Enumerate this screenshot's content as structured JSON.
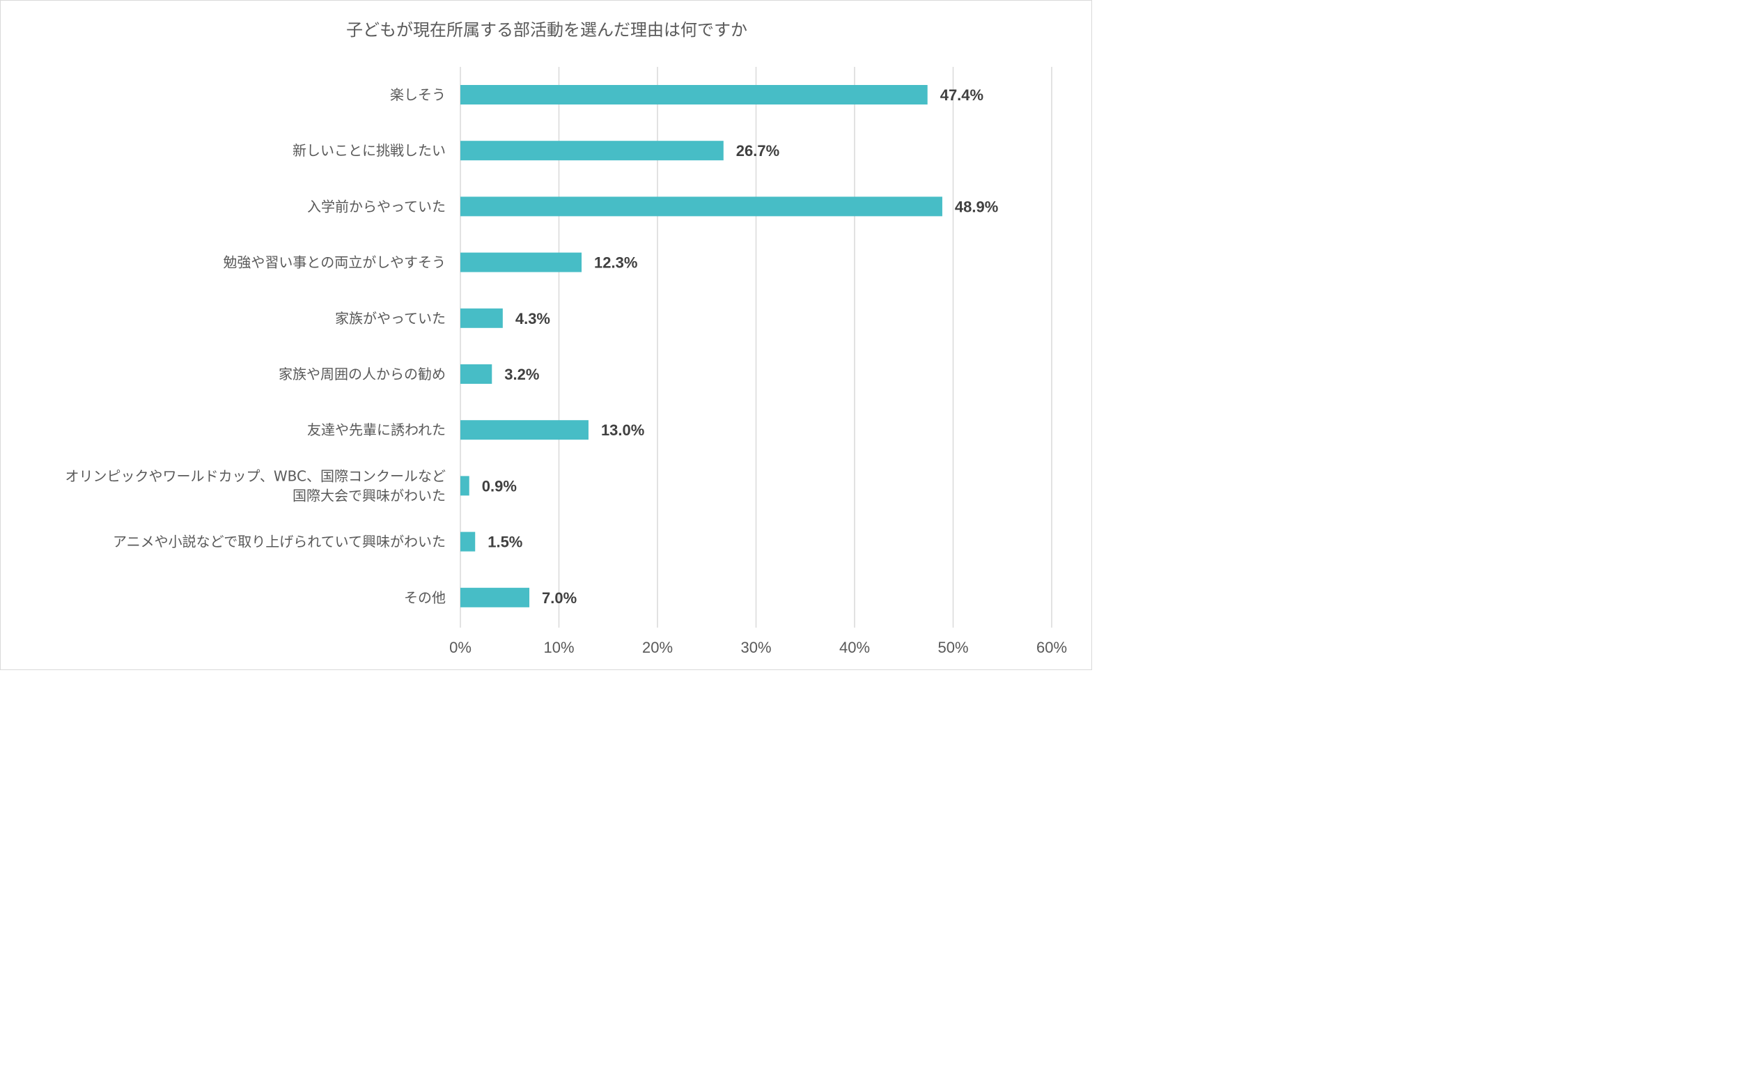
{
  "chart_data": {
    "type": "bar",
    "orientation": "horizontal",
    "title": "子どもが現在所属する部活動を選んだ理由は何ですか",
    "categories": [
      "楽しそう",
      "新しいことに挑戦したい",
      "入学前からやっていた",
      "勉強や習い事との両立がしやすそう",
      "家族がやっていた",
      "家族や周囲の人からの勧め",
      "友達や先輩に誘われた",
      "オリンピックやワールドカップ、WBC、国際コンクールなど\n国際大会で興味がわいた",
      "アニメや小説などで取り上げられていて興味がわいた",
      "その他"
    ],
    "values": [
      47.4,
      26.7,
      48.9,
      12.3,
      4.3,
      3.2,
      13.0,
      0.9,
      1.5,
      7.0
    ],
    "value_labels": [
      "47.4%",
      "26.7%",
      "48.9%",
      "12.3%",
      "4.3%",
      "3.2%",
      "13.0%",
      "0.9%",
      "1.5%",
      "7.0%"
    ],
    "xlim": [
      0,
      60
    ],
    "xticks": [
      0,
      10,
      20,
      30,
      40,
      50,
      60
    ],
    "xtick_labels": [
      "0%",
      "10%",
      "20%",
      "30%",
      "40%",
      "50%",
      "60%"
    ],
    "xlabel": "",
    "ylabel": "",
    "grid": "vertical",
    "legend": "none",
    "bar_color": "#47bdc6"
  }
}
